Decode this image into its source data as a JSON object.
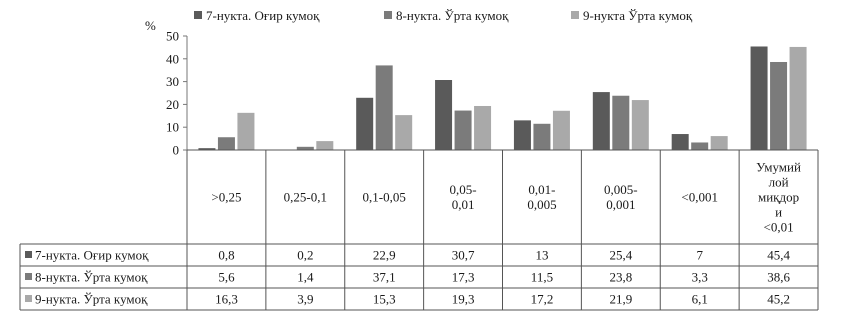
{
  "chart_data": {
    "type": "bar",
    "ylabel": "%",
    "ylim": [
      0,
      50
    ],
    "yticks": [
      "0",
      "10",
      "20",
      "30",
      "40",
      "50"
    ],
    "grid": false,
    "legend_position": "top",
    "categories": [
      [
        ">0,25"
      ],
      [
        "0,25-0,1"
      ],
      [
        "0,1-0,05"
      ],
      [
        "0,05-",
        "0,01"
      ],
      [
        "0,01-",
        "0,005"
      ],
      [
        "0,005-",
        "0,001"
      ],
      [
        "<0,001"
      ],
      [
        "Умумий",
        "лой",
        "миқдор",
        "и",
        "<0,01"
      ]
    ],
    "series": [
      {
        "name": "7-нукта. Оғир кумоқ",
        "color": "#5a5a5a",
        "values": [
          0.8,
          0.2,
          22.9,
          30.7,
          13,
          25.4,
          7,
          45.4
        ],
        "labels": [
          "0,8",
          "0,2",
          "22,9",
          "30,7",
          "13",
          "25,4",
          "7",
          "45,4"
        ]
      },
      {
        "name": "8-нукта. Ўрта кумоқ",
        "color": "#7b7b7b",
        "values": [
          5.6,
          1.4,
          37.1,
          17.3,
          11.5,
          23.8,
          3.3,
          38.6
        ],
        "labels": [
          "5,6",
          "1,4",
          "37,1",
          "17,3",
          "11,5",
          "23,8",
          "3,3",
          "38,6"
        ]
      },
      {
        "name": "9-нукта Ўрта кумоқ",
        "table_name": "9-нукта. Ўрта кумоқ",
        "color": "#a9a9a9",
        "values": [
          16.3,
          3.9,
          15.3,
          19.3,
          17.2,
          21.9,
          6.1,
          45.2
        ],
        "labels": [
          "16,3",
          "3,9",
          "15,3",
          "19,3",
          "17,2",
          "21,9",
          "6,1",
          "45,2"
        ]
      }
    ]
  }
}
